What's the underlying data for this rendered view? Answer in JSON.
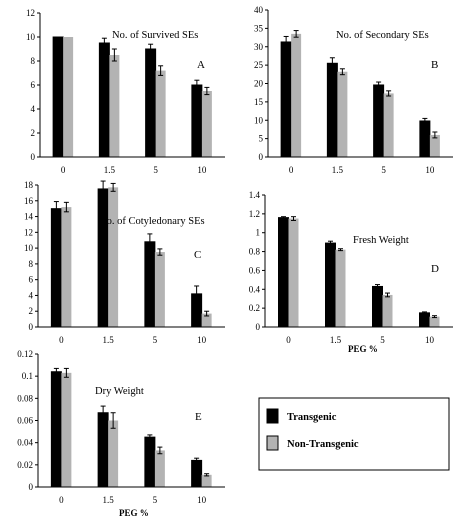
{
  "legend": {
    "entries": [
      {
        "name": "Transgenic",
        "color": "#000000"
      },
      {
        "name": "Non-Transgenic",
        "color": "#b3b3b3"
      }
    ]
  },
  "chart_data": [
    {
      "type": "bar",
      "title": "No. of Survived SEs",
      "letter": "A",
      "xlabel": "",
      "categories": [
        "0",
        "1.5",
        "5",
        "10"
      ],
      "ylim": [
        0,
        12
      ],
      "yticks": [
        0,
        2,
        4,
        6,
        8,
        10,
        12
      ],
      "series": [
        {
          "name": "Transgenic",
          "values": [
            10,
            9.5,
            9,
            6
          ],
          "errors": [
            0,
            0.4,
            0.4,
            0.4
          ]
        },
        {
          "name": "Non-Transgenic",
          "values": [
            10,
            8.5,
            7.2,
            5.5
          ],
          "errors": [
            0,
            0.5,
            0.4,
            0.3
          ]
        }
      ]
    },
    {
      "type": "bar",
      "title": "No. of Secondary SEs",
      "letter": "B",
      "xlabel": "",
      "categories": [
        "0",
        "1.5",
        "5",
        "10"
      ],
      "ylim": [
        0,
        40
      ],
      "yticks": [
        0,
        5,
        10,
        15,
        20,
        25,
        30,
        35,
        40
      ],
      "series": [
        {
          "name": "Transgenic",
          "values": [
            31.3,
            25.5,
            19.6,
            9.8
          ],
          "errors": [
            1.5,
            1.5,
            0.8,
            0.7
          ]
        },
        {
          "name": "Non-Transgenic",
          "values": [
            33.5,
            23.2,
            17.3,
            6
          ],
          "errors": [
            0.9,
            0.8,
            0.7,
            0.8
          ]
        }
      ]
    },
    {
      "type": "bar",
      "title": "No. of Cotyledonary SEs",
      "letter": "C",
      "xlabel": "",
      "categories": [
        "0",
        "1.5",
        "5",
        "10"
      ],
      "ylim": [
        0,
        18
      ],
      "yticks": [
        0,
        2,
        4,
        6,
        8,
        10,
        12,
        14,
        16,
        18
      ],
      "series": [
        {
          "name": "Transgenic",
          "values": [
            15,
            17.5,
            10.8,
            4.2
          ],
          "errors": [
            0.9,
            1.0,
            1.0,
            1.0
          ]
        },
        {
          "name": "Non-Transgenic",
          "values": [
            15.2,
            17.7,
            9.5,
            1.7
          ],
          "errors": [
            0.6,
            0.5,
            0.4,
            0.3
          ]
        }
      ]
    },
    {
      "type": "bar",
      "title": "Fresh Weight",
      "letter": "D",
      "xlabel": "PEG %",
      "categories": [
        "0",
        "1.5",
        "5",
        "10"
      ],
      "ylim": [
        0,
        1.4
      ],
      "yticks": [
        0,
        0.2,
        0.4,
        0.6,
        0.8,
        1,
        1.2,
        1.4
      ],
      "series": [
        {
          "name": "Transgenic",
          "values": [
            1.16,
            0.89,
            0.43,
            0.15
          ],
          "errors": [
            0.01,
            0.02,
            0.02,
            0.01
          ]
        },
        {
          "name": "Non-Transgenic",
          "values": [
            1.15,
            0.82,
            0.34,
            0.11
          ],
          "errors": [
            0.02,
            0.01,
            0.02,
            0.01
          ]
        }
      ]
    },
    {
      "type": "bar",
      "title": "Dry Weight",
      "letter": "E",
      "xlabel": "PEG %",
      "categories": [
        "0",
        "1.5",
        "5",
        "10"
      ],
      "ylim": [
        0,
        0.12
      ],
      "yticks": [
        0,
        0.02,
        0.04,
        0.06,
        0.08,
        0.1,
        0.12
      ],
      "series": [
        {
          "name": "Transgenic",
          "values": [
            0.104,
            0.067,
            0.045,
            0.024
          ],
          "errors": [
            0.003,
            0.006,
            0.002,
            0.002
          ]
        },
        {
          "name": "Non-Transgenic",
          "values": [
            0.103,
            0.06,
            0.033,
            0.011
          ],
          "errors": [
            0.004,
            0.007,
            0.003,
            0.001
          ]
        }
      ]
    }
  ]
}
